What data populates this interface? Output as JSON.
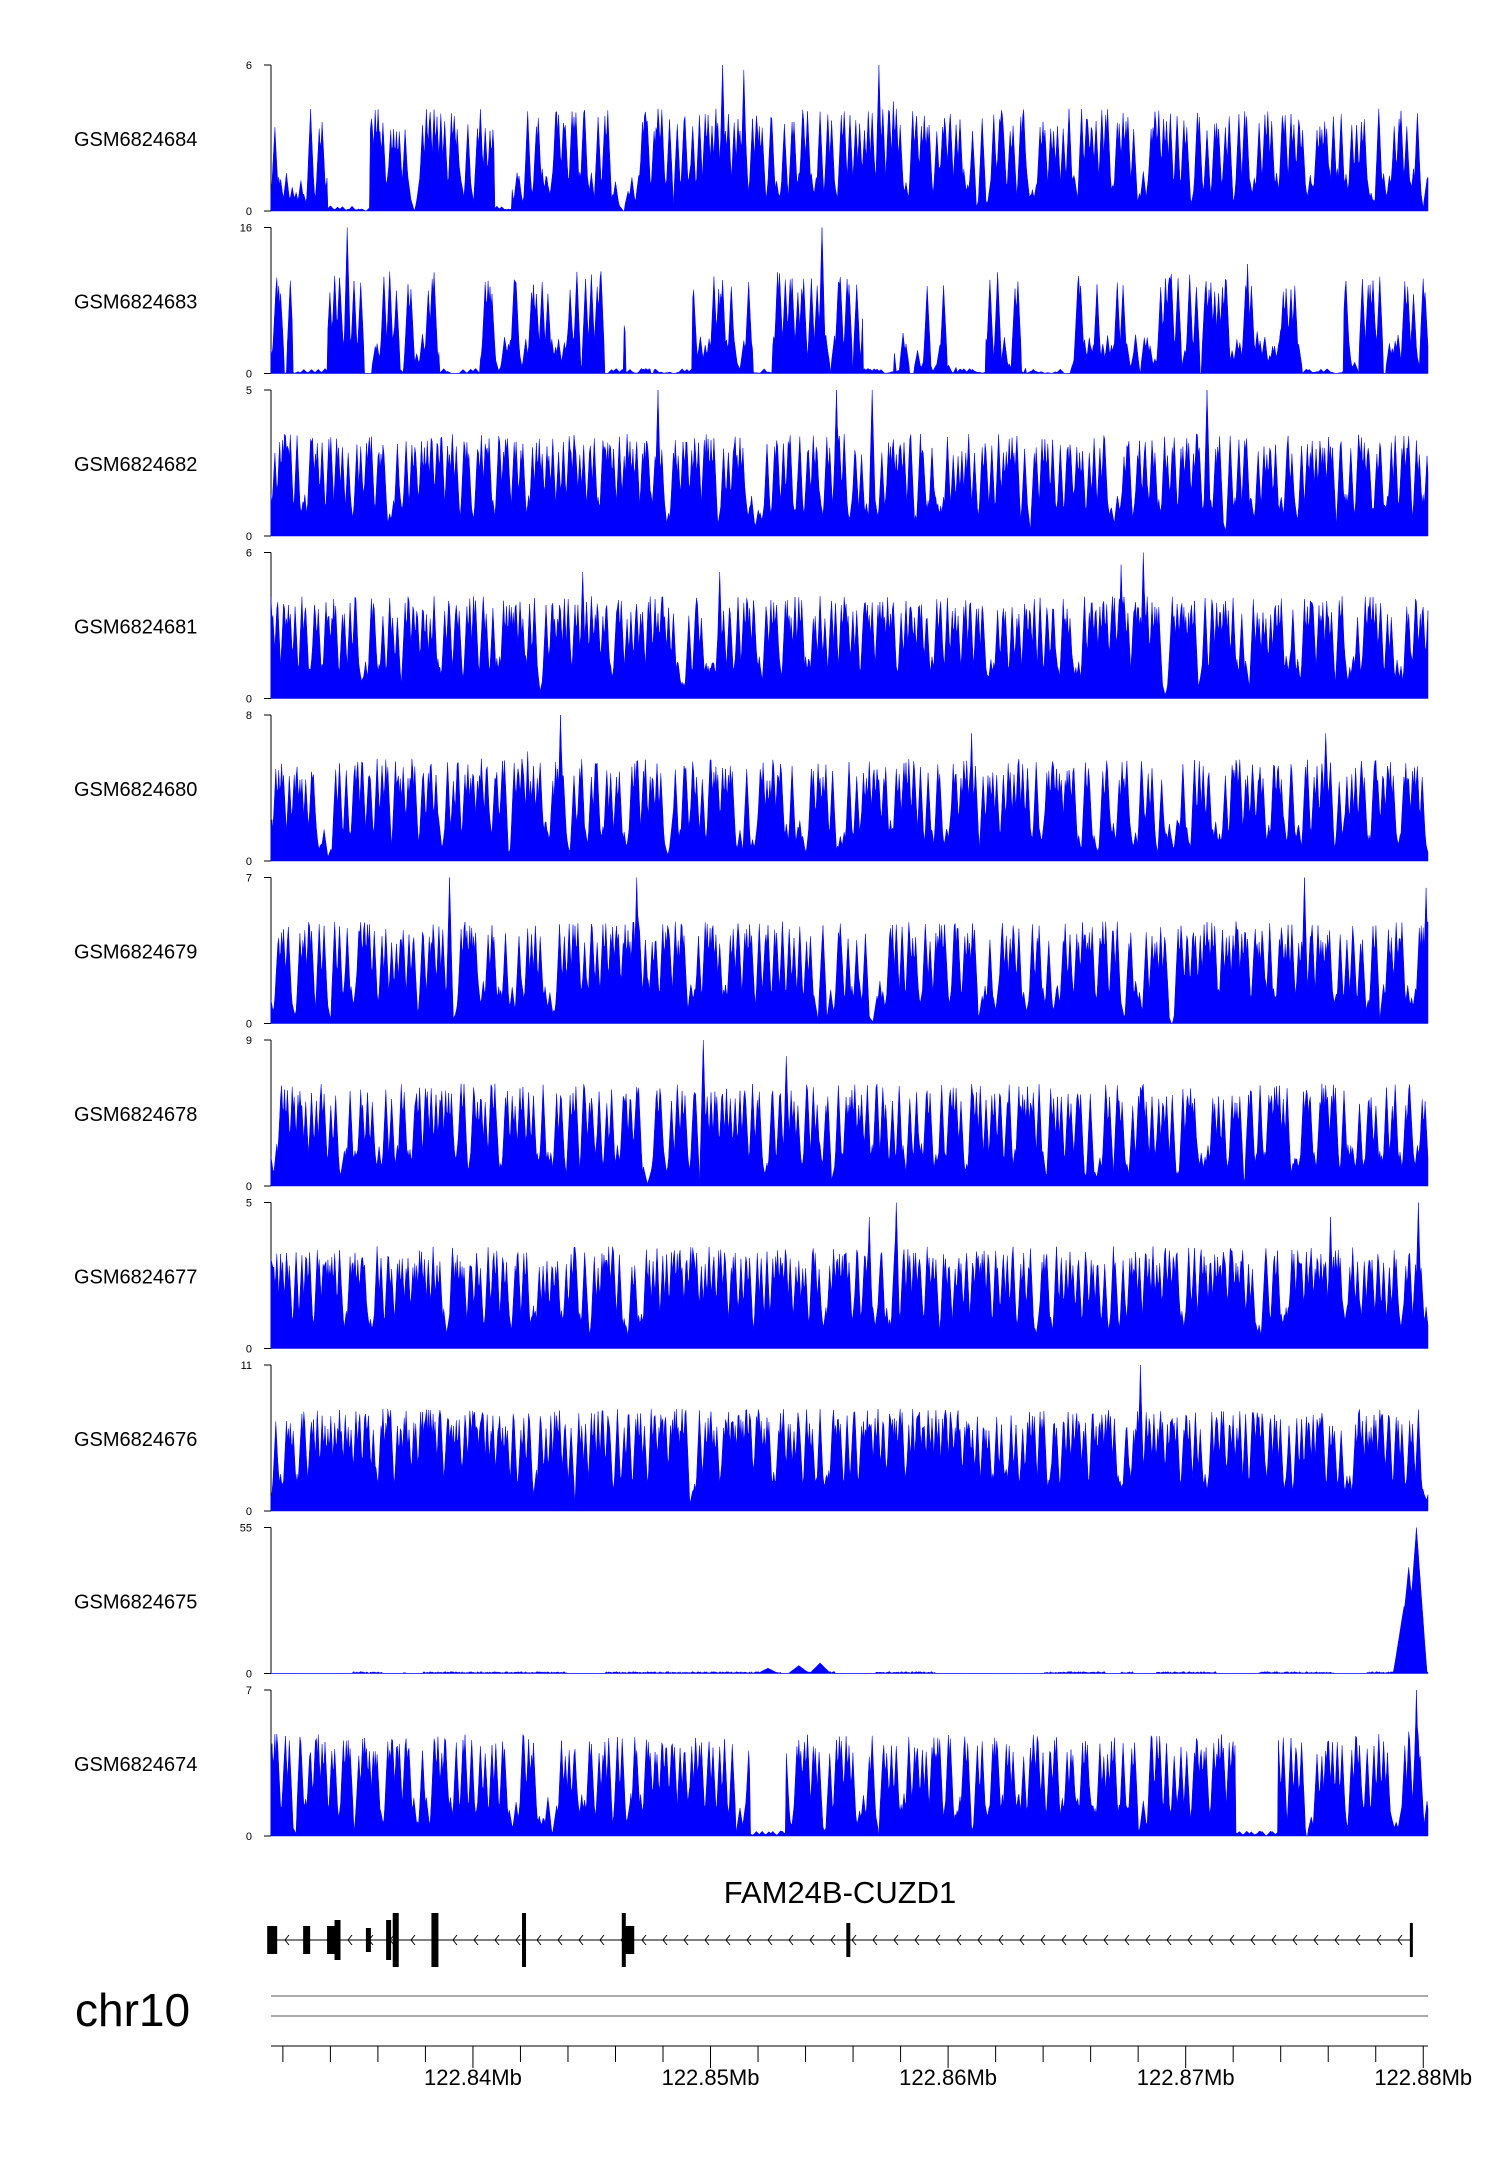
{
  "chart_data": {
    "type": "area",
    "chromosome": "chr10",
    "x_range_mb": [
      122.8315,
      122.8802
    ],
    "x_ticks": [
      {
        "value": 122.84,
        "label": "122.84Mb"
      },
      {
        "value": 122.85,
        "label": "122.85Mb"
      },
      {
        "value": 122.86,
        "label": "122.86Mb"
      },
      {
        "value": 122.87,
        "label": "122.87Mb"
      },
      {
        "value": 122.88,
        "label": "122.88Mb"
      }
    ],
    "fill_color": "#0000ff",
    "tracks": [
      {
        "name": "GSM6824684",
        "ymax": 6,
        "ymin_label": "0",
        "ymax_label": "6",
        "seed": 11,
        "baseline": 0.05,
        "density": 0.55,
        "peaks": [
          {
            "x": 122.8505,
            "h": 6
          },
          {
            "x": 122.8514,
            "h": 5.8
          },
          {
            "x": 122.8571,
            "h": 6
          },
          {
            "x": 122.8577,
            "h": 4.5
          }
        ]
      },
      {
        "name": "GSM6824683",
        "ymax": 16,
        "ymin_label": "0",
        "ymax_label": "16",
        "seed": 23,
        "baseline": 0.02,
        "density": 0.35,
        "peaks": [
          {
            "x": 122.8347,
            "h": 16
          },
          {
            "x": 122.8547,
            "h": 16
          },
          {
            "x": 122.8726,
            "h": 12
          }
        ]
      },
      {
        "name": "GSM6824682",
        "ymax": 5,
        "ymin_label": "0",
        "ymax_label": "5",
        "seed": 37,
        "baseline": 0.08,
        "density": 0.7,
        "peaks": [
          {
            "x": 122.8478,
            "h": 5
          },
          {
            "x": 122.8553,
            "h": 5
          },
          {
            "x": 122.8568,
            "h": 5
          },
          {
            "x": 122.8709,
            "h": 5
          }
        ]
      },
      {
        "name": "GSM6824681",
        "ymax": 6,
        "ymin_label": "0",
        "ymax_label": "6",
        "seed": 41,
        "baseline": 0.1,
        "density": 0.8,
        "peaks": [
          {
            "x": 122.8682,
            "h": 6
          },
          {
            "x": 122.8673,
            "h": 5.5
          },
          {
            "x": 122.8446,
            "h": 5.2
          },
          {
            "x": 122.8504,
            "h": 5.2
          }
        ]
      },
      {
        "name": "GSM6824680",
        "ymax": 8,
        "ymin_label": "0",
        "ymax_label": "8",
        "seed": 53,
        "baseline": 0.08,
        "density": 0.7,
        "peaks": [
          {
            "x": 122.8437,
            "h": 8
          },
          {
            "x": 122.8423,
            "h": 6
          },
          {
            "x": 122.861,
            "h": 7
          },
          {
            "x": 122.8759,
            "h": 7
          }
        ]
      },
      {
        "name": "GSM6824679",
        "ymax": 7,
        "ymin_label": "0",
        "ymax_label": "7",
        "seed": 67,
        "baseline": 0.05,
        "density": 0.6,
        "peaks": [
          {
            "x": 122.839,
            "h": 7
          },
          {
            "x": 122.8469,
            "h": 7
          },
          {
            "x": 122.875,
            "h": 7
          },
          {
            "x": 122.8801,
            "h": 6.5
          }
        ]
      },
      {
        "name": "GSM6824678",
        "ymax": 9,
        "ymin_label": "0",
        "ymax_label": "9",
        "seed": 79,
        "baseline": 0.06,
        "density": 0.65,
        "peaks": [
          {
            "x": 122.8497,
            "h": 9
          },
          {
            "x": 122.8532,
            "h": 8
          },
          {
            "x": 122.8646,
            "h": 5.5
          }
        ]
      },
      {
        "name": "GSM6824677",
        "ymax": 5,
        "ymin_label": "0",
        "ymax_label": "5",
        "seed": 83,
        "baseline": 0.15,
        "density": 0.8,
        "peaks": [
          {
            "x": 122.8578,
            "h": 5
          },
          {
            "x": 122.8761,
            "h": 4.5
          },
          {
            "x": 122.8798,
            "h": 5
          },
          {
            "x": 122.8567,
            "h": 4.5
          }
        ]
      },
      {
        "name": "GSM6824676",
        "ymax": 11,
        "ymin_label": "0",
        "ymax_label": "11",
        "seed": 97,
        "baseline": 0.08,
        "density": 0.85,
        "peaks": [
          {
            "x": 122.8681,
            "h": 11
          },
          {
            "x": 122.8499,
            "h": 7
          },
          {
            "x": 122.8477,
            "h": 6
          }
        ]
      },
      {
        "name": "GSM6824675",
        "ymax": 55,
        "ymin_label": "0",
        "ymax_label": "55",
        "seed": 101,
        "baseline": 0.01,
        "density": 0.15,
        "peaks": [
          {
            "x": 122.8797,
            "h": 55
          },
          {
            "x": 122.8794,
            "h": 40
          },
          {
            "x": 122.8792,
            "h": 25
          },
          {
            "x": 122.8546,
            "h": 4
          },
          {
            "x": 122.8537,
            "h": 3
          },
          {
            "x": 122.8524,
            "h": 2
          }
        ]
      },
      {
        "name": "GSM6824674",
        "ymax": 7,
        "ymin_label": "0",
        "ymax_label": "7",
        "seed": 113,
        "baseline": 0.04,
        "density": 0.55,
        "peaks": [
          {
            "x": 122.8797,
            "h": 7
          },
          {
            "x": 122.8794,
            "h": 5
          },
          {
            "x": 122.8785,
            "h": 4
          },
          {
            "x": 122.856,
            "h": 4
          },
          {
            "x": 122.864,
            "h": 4
          }
        ]
      }
    ],
    "gene": {
      "name": "FAM24B-CUZD1",
      "strand": "-",
      "start_mb": 122.8315,
      "end_mb": 122.8795,
      "exons_mb": [
        122.83155,
        122.833,
        122.83405,
        122.8343,
        122.8356,
        122.83645,
        122.83675,
        122.8384,
        122.84215,
        122.84635,
        122.8466,
        122.8558,
        122.8795
      ]
    }
  }
}
